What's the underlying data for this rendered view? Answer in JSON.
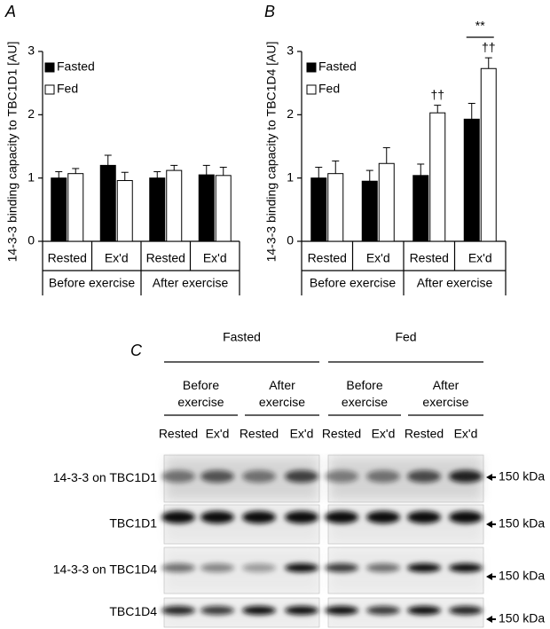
{
  "chart_data": [
    {
      "type": "bar",
      "panel": "A",
      "ylabel": "14-3-3 binding capacity to TBC1D1 [AU]",
      "categories": [
        "Rested",
        "Ex'd",
        "Rested",
        "Ex'd"
      ],
      "category_groups": [
        "Before exercise",
        "After exercise"
      ],
      "ylim": [
        0,
        3
      ],
      "yticks": [
        0,
        1,
        2,
        3
      ],
      "series": [
        {
          "name": "Fasted",
          "color": "#000000",
          "values": [
            1.0,
            1.2,
            1.0,
            1.05
          ],
          "errors": [
            0.1,
            0.16,
            0.1,
            0.15
          ]
        },
        {
          "name": "Fed",
          "color": "#ffffff",
          "values": [
            1.07,
            0.96,
            1.12,
            1.04
          ],
          "errors": [
            0.08,
            0.13,
            0.08,
            0.13
          ]
        }
      ]
    },
    {
      "type": "bar",
      "panel": "B",
      "ylabel": "14-3-3 binding capacity to TBC1D4 [AU]",
      "categories": [
        "Rested",
        "Ex'd",
        "Rested",
        "Ex'd"
      ],
      "category_groups": [
        "Before exercise",
        "After exercise"
      ],
      "ylim": [
        0,
        3
      ],
      "yticks": [
        0,
        1,
        2,
        3
      ],
      "series": [
        {
          "name": "Fasted",
          "color": "#000000",
          "values": [
            1.0,
            0.95,
            1.04,
            1.93
          ],
          "errors": [
            0.17,
            0.17,
            0.18,
            0.25
          ]
        },
        {
          "name": "Fed",
          "color": "#ffffff",
          "values": [
            1.07,
            1.23,
            2.03,
            2.73
          ],
          "errors": [
            0.2,
            0.25,
            0.12,
            0.17
          ]
        }
      ],
      "annotations": [
        "††",
        "††",
        "**"
      ]
    }
  ],
  "blot": {
    "panel": "C",
    "conditions": [
      "Fasted",
      "Fed"
    ],
    "timings": [
      "Before exercise",
      "After exercise",
      "Before exercise",
      "After exercise"
    ],
    "states": [
      "Rested",
      "Ex'd",
      "Rested",
      "Ex'd",
      "Rested",
      "Ex'd",
      "Rested",
      "Ex'd"
    ],
    "rows": [
      "14-3-3 on TBC1D1",
      "TBC1D1",
      "14-3-3 on TBC1D4",
      "TBC1D4"
    ],
    "markers": [
      "150 kDa",
      "150 kDa",
      "150 kDa",
      "150 kDa"
    ]
  }
}
